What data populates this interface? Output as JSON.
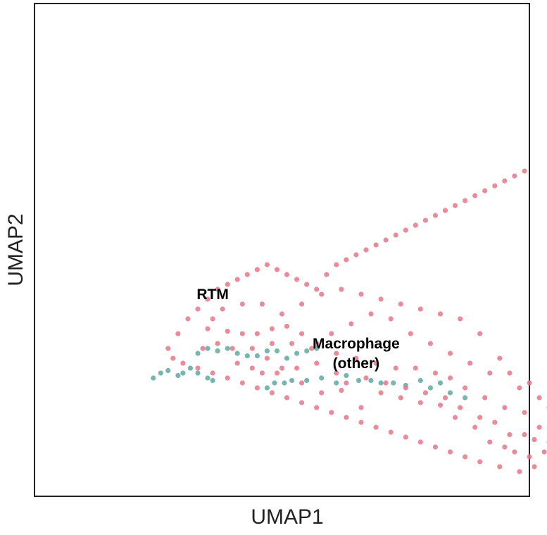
{
  "chart_data": {
    "type": "scatter",
    "title": "",
    "xlabel": "UMAP1",
    "ylabel": "UMAP2",
    "xlim": [
      0,
      100
    ],
    "ylim": [
      0,
      100
    ],
    "ticks": "none",
    "grid": false,
    "legend": "none",
    "annotations": [
      {
        "text": "RTM",
        "x": 36,
        "y": 40
      },
      {
        "text": "Macrophage",
        "x": 65,
        "y": 30
      },
      {
        "text": "(other)",
        "x": 65,
        "y": 26
      }
    ],
    "series": [
      {
        "cluster": "RTM",
        "color": "#5fa9a1",
        "points": [
          [
            47,
            22
          ],
          [
            48.5,
            23
          ],
          [
            50.5,
            23
          ],
          [
            52,
            23.5
          ],
          [
            55,
            23.5
          ],
          [
            58,
            24
          ],
          [
            61,
            23
          ],
          [
            63,
            24.5
          ],
          [
            65.5,
            23.5
          ],
          [
            68,
            23.5
          ],
          [
            70,
            23
          ],
          [
            72.5,
            23
          ],
          [
            75,
            22.5
          ],
          [
            78,
            23.5
          ],
          [
            80,
            22
          ],
          [
            82,
            23
          ],
          [
            84,
            21
          ],
          [
            87,
            20
          ],
          [
            24,
            24
          ],
          [
            25.5,
            25
          ],
          [
            27,
            25.5
          ],
          [
            29,
            24.5
          ],
          [
            30,
            25
          ],
          [
            31.5,
            26
          ],
          [
            33,
            25
          ],
          [
            35,
            24
          ],
          [
            36,
            23.5
          ],
          [
            33,
            29
          ],
          [
            35,
            30
          ],
          [
            37,
            29.5
          ],
          [
            39,
            30
          ],
          [
            41,
            29
          ],
          [
            43,
            28.5
          ],
          [
            45,
            28.5
          ],
          [
            47,
            29.5
          ],
          [
            49,
            29.5
          ],
          [
            51,
            28
          ],
          [
            53,
            29
          ],
          [
            55,
            29.5
          ],
          [
            57,
            30
          ]
        ]
      },
      {
        "cluster": "Macrophage (other)",
        "color": "#e57788",
        "points": [
          [
            44,
            26
          ],
          [
            46,
            25
          ],
          [
            50,
            26
          ],
          [
            54,
            23
          ],
          [
            58,
            21
          ],
          [
            62,
            21.5
          ],
          [
            66,
            18
          ],
          [
            70,
            21
          ],
          [
            74,
            20
          ],
          [
            78,
            19
          ],
          [
            82,
            18.5
          ],
          [
            86,
            18
          ],
          [
            90,
            16
          ],
          [
            93,
            15
          ],
          [
            96,
            12.5
          ],
          [
            99,
            12.5
          ],
          [
            101,
            11.5
          ],
          [
            104,
            11
          ],
          [
            102,
            14
          ],
          [
            99,
            17
          ],
          [
            95,
            18
          ],
          [
            91,
            20
          ],
          [
            87,
            22
          ],
          [
            84,
            24
          ],
          [
            81,
            25
          ],
          [
            77,
            26
          ],
          [
            73,
            26
          ],
          [
            69,
            27
          ],
          [
            65,
            28
          ],
          [
            61,
            29
          ],
          [
            57,
            31
          ],
          [
            54,
            33
          ],
          [
            51,
            34.5
          ],
          [
            48,
            34
          ],
          [
            45,
            33
          ],
          [
            42,
            33
          ],
          [
            39,
            33.5
          ],
          [
            36,
            36
          ],
          [
            40,
            30
          ],
          [
            44,
            30
          ],
          [
            48,
            31
          ],
          [
            52,
            31
          ],
          [
            56,
            30
          ],
          [
            60,
            33
          ],
          [
            64,
            35
          ],
          [
            68,
            37
          ],
          [
            72,
            36
          ],
          [
            76,
            33
          ],
          [
            80,
            31
          ],
          [
            84,
            29
          ],
          [
            88,
            27
          ],
          [
            92,
            25
          ],
          [
            96,
            25
          ],
          [
            100,
            23
          ],
          [
            102,
            20
          ],
          [
            104,
            18
          ],
          [
            98,
            22
          ],
          [
            94,
            28
          ],
          [
            90,
            33
          ],
          [
            86,
            36
          ],
          [
            82,
            37
          ],
          [
            78,
            38
          ],
          [
            74,
            39
          ],
          [
            70,
            40
          ],
          [
            66,
            41
          ],
          [
            62,
            42
          ],
          [
            58,
            41
          ],
          [
            54,
            39
          ],
          [
            50,
            37
          ],
          [
            46,
            39
          ],
          [
            42,
            39
          ],
          [
            38,
            38
          ],
          [
            35,
            34
          ],
          [
            34,
            30
          ],
          [
            37,
            31
          ],
          [
            41,
            27
          ],
          [
            47,
            28
          ],
          [
            49,
            25
          ],
          [
            53,
            26
          ],
          [
            57,
            27
          ],
          [
            61,
            25
          ],
          [
            63,
            23
          ],
          [
            67,
            24
          ],
          [
            71,
            23
          ],
          [
            75,
            22
          ],
          [
            79,
            21
          ],
          [
            83,
            20
          ],
          [
            85,
            16
          ],
          [
            89,
            14
          ],
          [
            92,
            11
          ],
          [
            95,
            10
          ],
          [
            97,
            9
          ],
          [
            100,
            8
          ],
          [
            103,
            9
          ],
          [
            101,
            6
          ],
          [
            98,
            5
          ],
          [
            94,
            6
          ],
          [
            90,
            7
          ],
          [
            87,
            8
          ],
          [
            84,
            9
          ],
          [
            81,
            10
          ],
          [
            78,
            11
          ],
          [
            75,
            12
          ],
          [
            72,
            13
          ],
          [
            69,
            14
          ],
          [
            66,
            15
          ],
          [
            63,
            16
          ],
          [
            60,
            17
          ],
          [
            57,
            18
          ],
          [
            54,
            19
          ],
          [
            51,
            20
          ],
          [
            48,
            21
          ],
          [
            45,
            22
          ],
          [
            42,
            23
          ],
          [
            39,
            24
          ],
          [
            36,
            25
          ],
          [
            33,
            26
          ],
          [
            30,
            27
          ],
          [
            28,
            28
          ],
          [
            27,
            30
          ],
          [
            29,
            33
          ],
          [
            31,
            36
          ],
          [
            33,
            38
          ],
          [
            35,
            40
          ],
          [
            37,
            42
          ],
          [
            39,
            43
          ],
          [
            41,
            44
          ],
          [
            43,
            45
          ],
          [
            45,
            46
          ],
          [
            47,
            47
          ],
          [
            49,
            46
          ],
          [
            51,
            45
          ],
          [
            53,
            44
          ],
          [
            55,
            43
          ],
          [
            57,
            42
          ],
          [
            59,
            45
          ],
          [
            61,
            47
          ],
          [
            63,
            48
          ],
          [
            65,
            49
          ],
          [
            67,
            50
          ],
          [
            69,
            51
          ],
          [
            71,
            52
          ],
          [
            73,
            53
          ],
          [
            75,
            54
          ],
          [
            77,
            55
          ],
          [
            79,
            56
          ],
          [
            81,
            57
          ],
          [
            83,
            58
          ],
          [
            85,
            59
          ],
          [
            87,
            60
          ],
          [
            89,
            61
          ],
          [
            91,
            62
          ],
          [
            93,
            63
          ],
          [
            95,
            64
          ],
          [
            97,
            65
          ],
          [
            99,
            66
          ]
        ]
      }
    ]
  }
}
